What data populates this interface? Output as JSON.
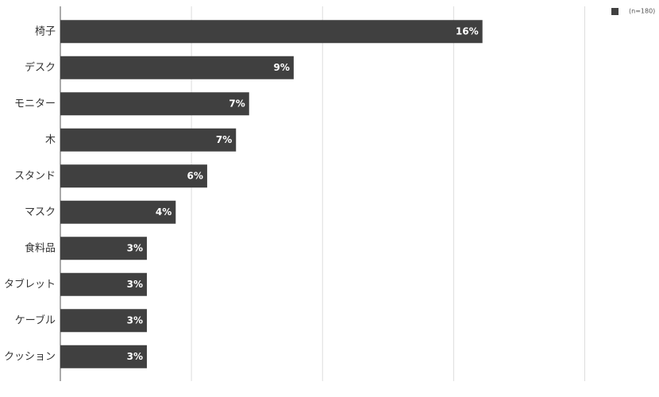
{
  "chart_data": {
    "type": "bar",
    "orientation": "horizontal",
    "categories": [
      "椅子",
      "デスク",
      "モニター",
      "木",
      "スタンド",
      "マスク",
      "食料品",
      "タブレット",
      "ケーブル",
      "クッション"
    ],
    "series": [
      {
        "name": "(n=180)",
        "color": "#404040",
        "values": [
          16.1,
          8.9,
          7.2,
          6.7,
          5.6,
          4.4,
          3.3,
          3.3,
          3.3,
          3.3
        ],
        "value_labels": [
          "16%",
          "9%",
          "7%",
          "7%",
          "6%",
          "4%",
          "3%",
          "3%",
          "3%",
          "3%"
        ]
      }
    ],
    "xlim": [
      0,
      22.5
    ],
    "xticks": [
      0,
      5,
      10,
      15,
      20
    ],
    "grid": true,
    "legend": "top-right"
  }
}
